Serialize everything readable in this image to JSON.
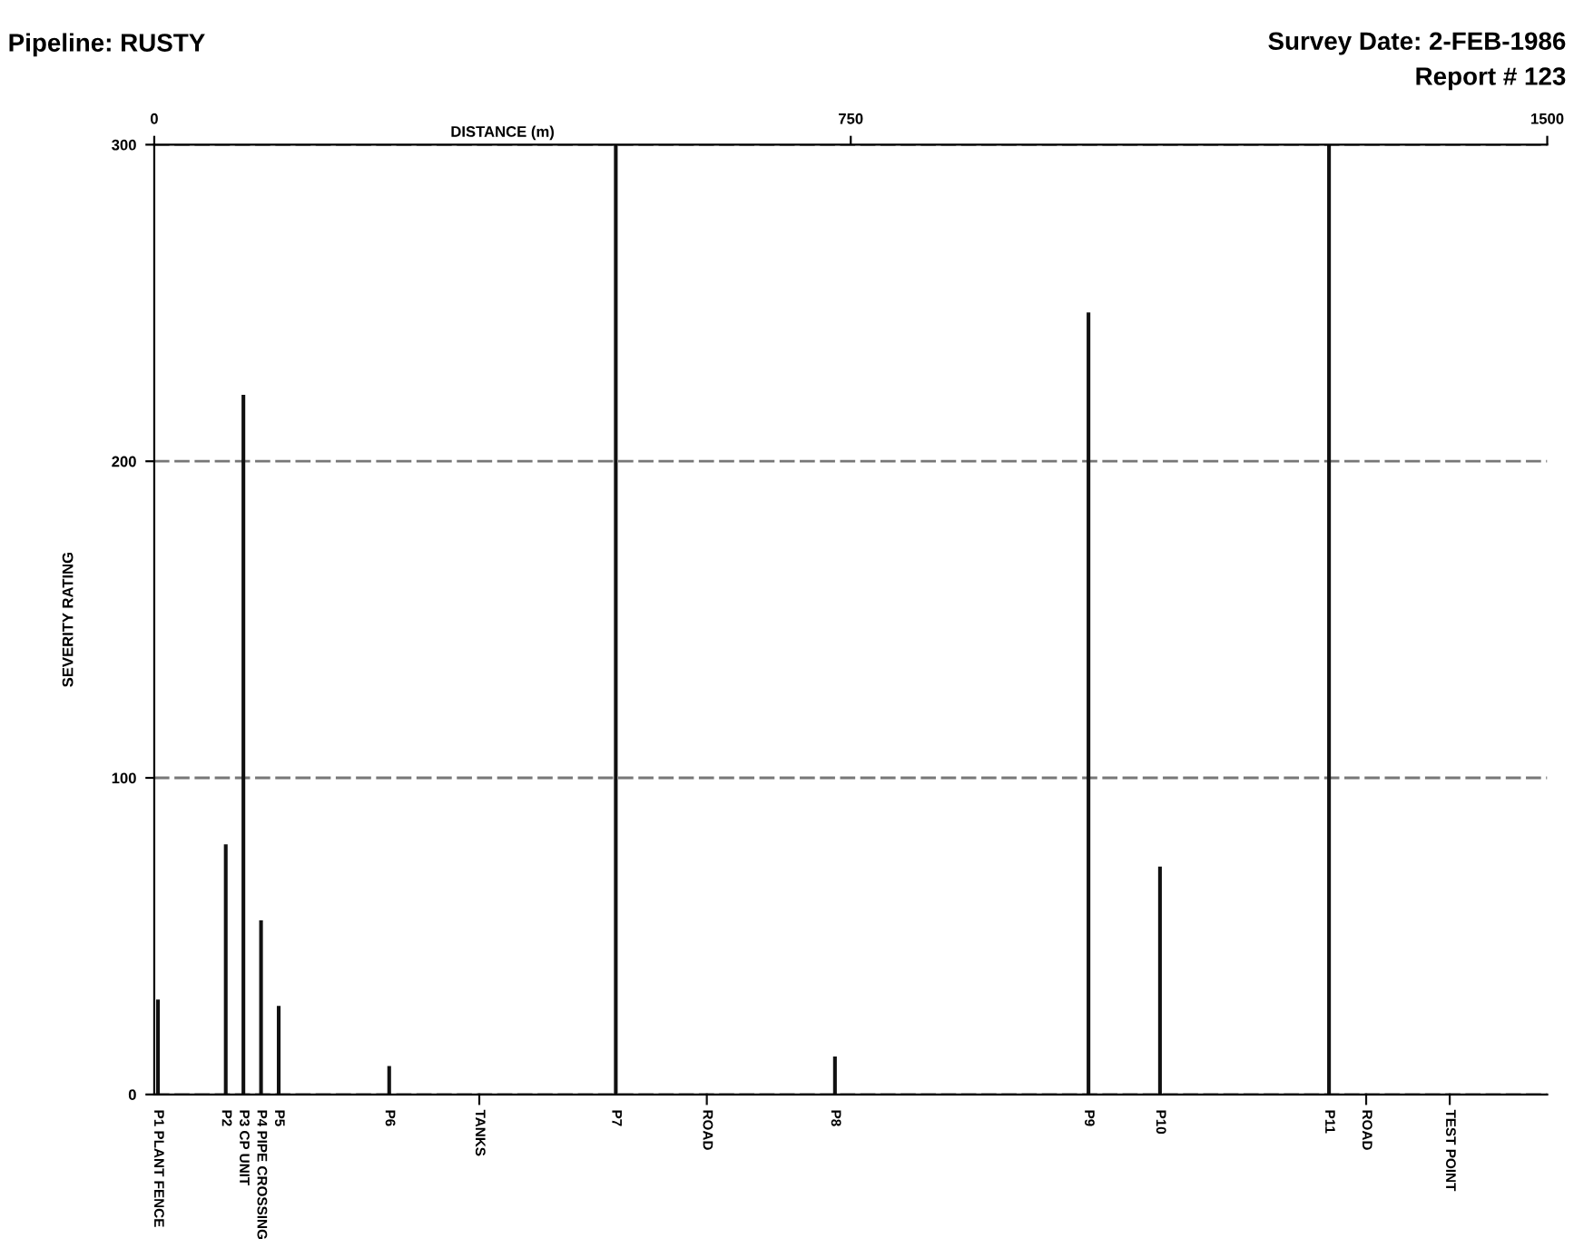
{
  "chart_data": {
    "type": "bar",
    "title": "Pipeline: RUSTY",
    "annotations": [
      "Survey Date: 2-FEB-1986",
      "Report # 123",
      {
        "text": "P1 PLANT FENCE",
        "x": 4,
        "y": 0
      },
      {
        "text": "P2",
        "x": 77,
        "y": 0
      },
      {
        "text": "P3 CP UNIT",
        "x": 96,
        "y": 0
      },
      {
        "text": "P4 PIPE CROSSING",
        "x": 115,
        "y": 0
      },
      {
        "text": "P5",
        "x": 134,
        "y": 0
      },
      {
        "text": "P6",
        "x": 253,
        "y": 0
      },
      {
        "text": "P7",
        "x": 497,
        "y": 0
      },
      {
        "text": "P8",
        "x": 733,
        "y": 0
      },
      {
        "text": "P9",
        "x": 1006,
        "y": 0
      },
      {
        "text": "P10",
        "x": 1083,
        "y": 0
      },
      {
        "text": "P11",
        "x": 1265,
        "y": 0
      }
    ],
    "ref_lines": [
      {
        "axis": "x",
        "value": 350,
        "label": "TANKS"
      },
      {
        "axis": "x",
        "value": 595,
        "label": "ROAD"
      },
      {
        "axis": "x",
        "value": 1305,
        "label": "ROAD"
      },
      {
        "axis": "x",
        "value": 1395,
        "label": "TEST POINT"
      }
    ],
    "ylabel": "SEVERITY RATING",
    "xlabel": "DISTANCE (m)",
    "x": [
      4,
      77,
      96,
      115,
      134,
      253,
      497,
      733,
      1006,
      1083,
      1265
    ],
    "values": [
      30,
      79,
      221,
      55,
      28,
      9,
      300,
      12,
      247,
      72,
      300
    ],
    "color": "#111111",
    "xlim": [
      0,
      1500
    ],
    "xticks": [
      0,
      750,
      1500
    ],
    "ylim": [
      0,
      300
    ],
    "yticks": [
      0,
      100,
      200,
      300
    ],
    "grid": "y"
  }
}
